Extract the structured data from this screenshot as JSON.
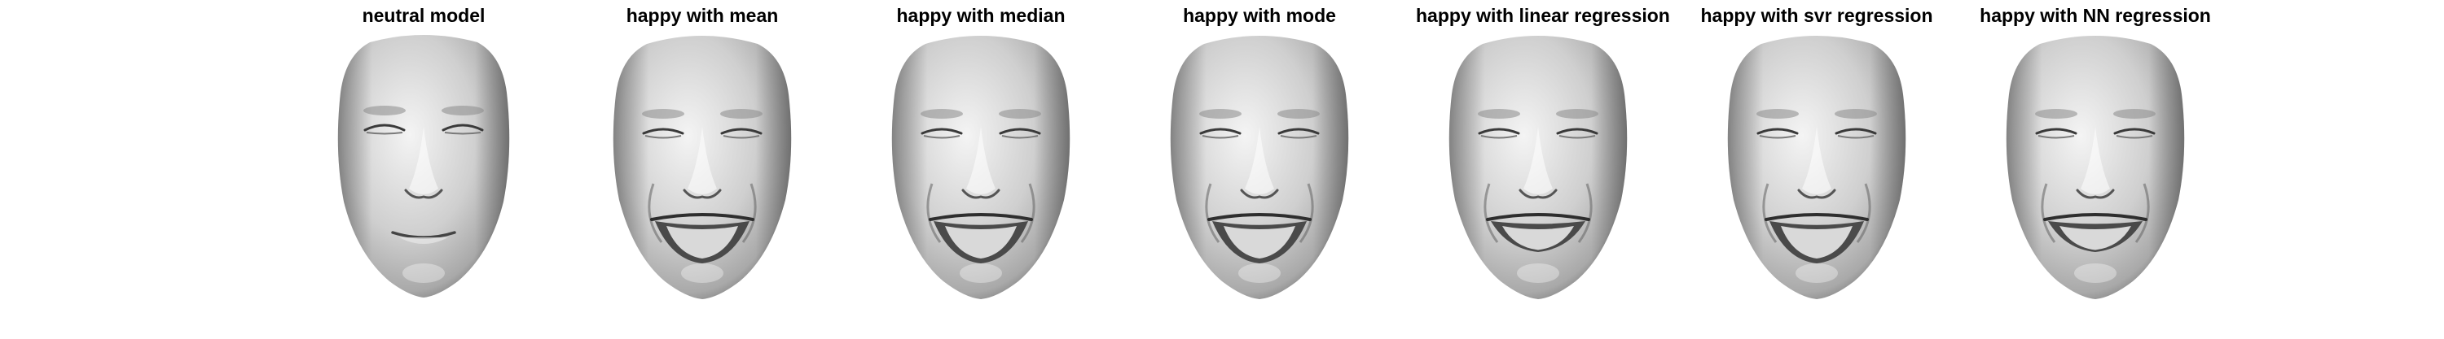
{
  "figure": {
    "panels": [
      {
        "title": "neutral model",
        "expression": "neutral"
      },
      {
        "title": "happy with mean",
        "expression": "happy"
      },
      {
        "title": "happy with median",
        "expression": "happy"
      },
      {
        "title": "happy with mode",
        "expression": "happy"
      },
      {
        "title": "happy with linear regression",
        "expression": "happy-soft"
      },
      {
        "title": "happy with svr regression",
        "expression": "happy"
      },
      {
        "title": "happy with NN regression",
        "expression": "happy-soft"
      }
    ],
    "colors": {
      "background": "#ffffff",
      "title": "#000000",
      "face_light": "#f4f4f4",
      "face_mid": "#a9a9a9",
      "face_dark": "#3a3a3a"
    }
  }
}
